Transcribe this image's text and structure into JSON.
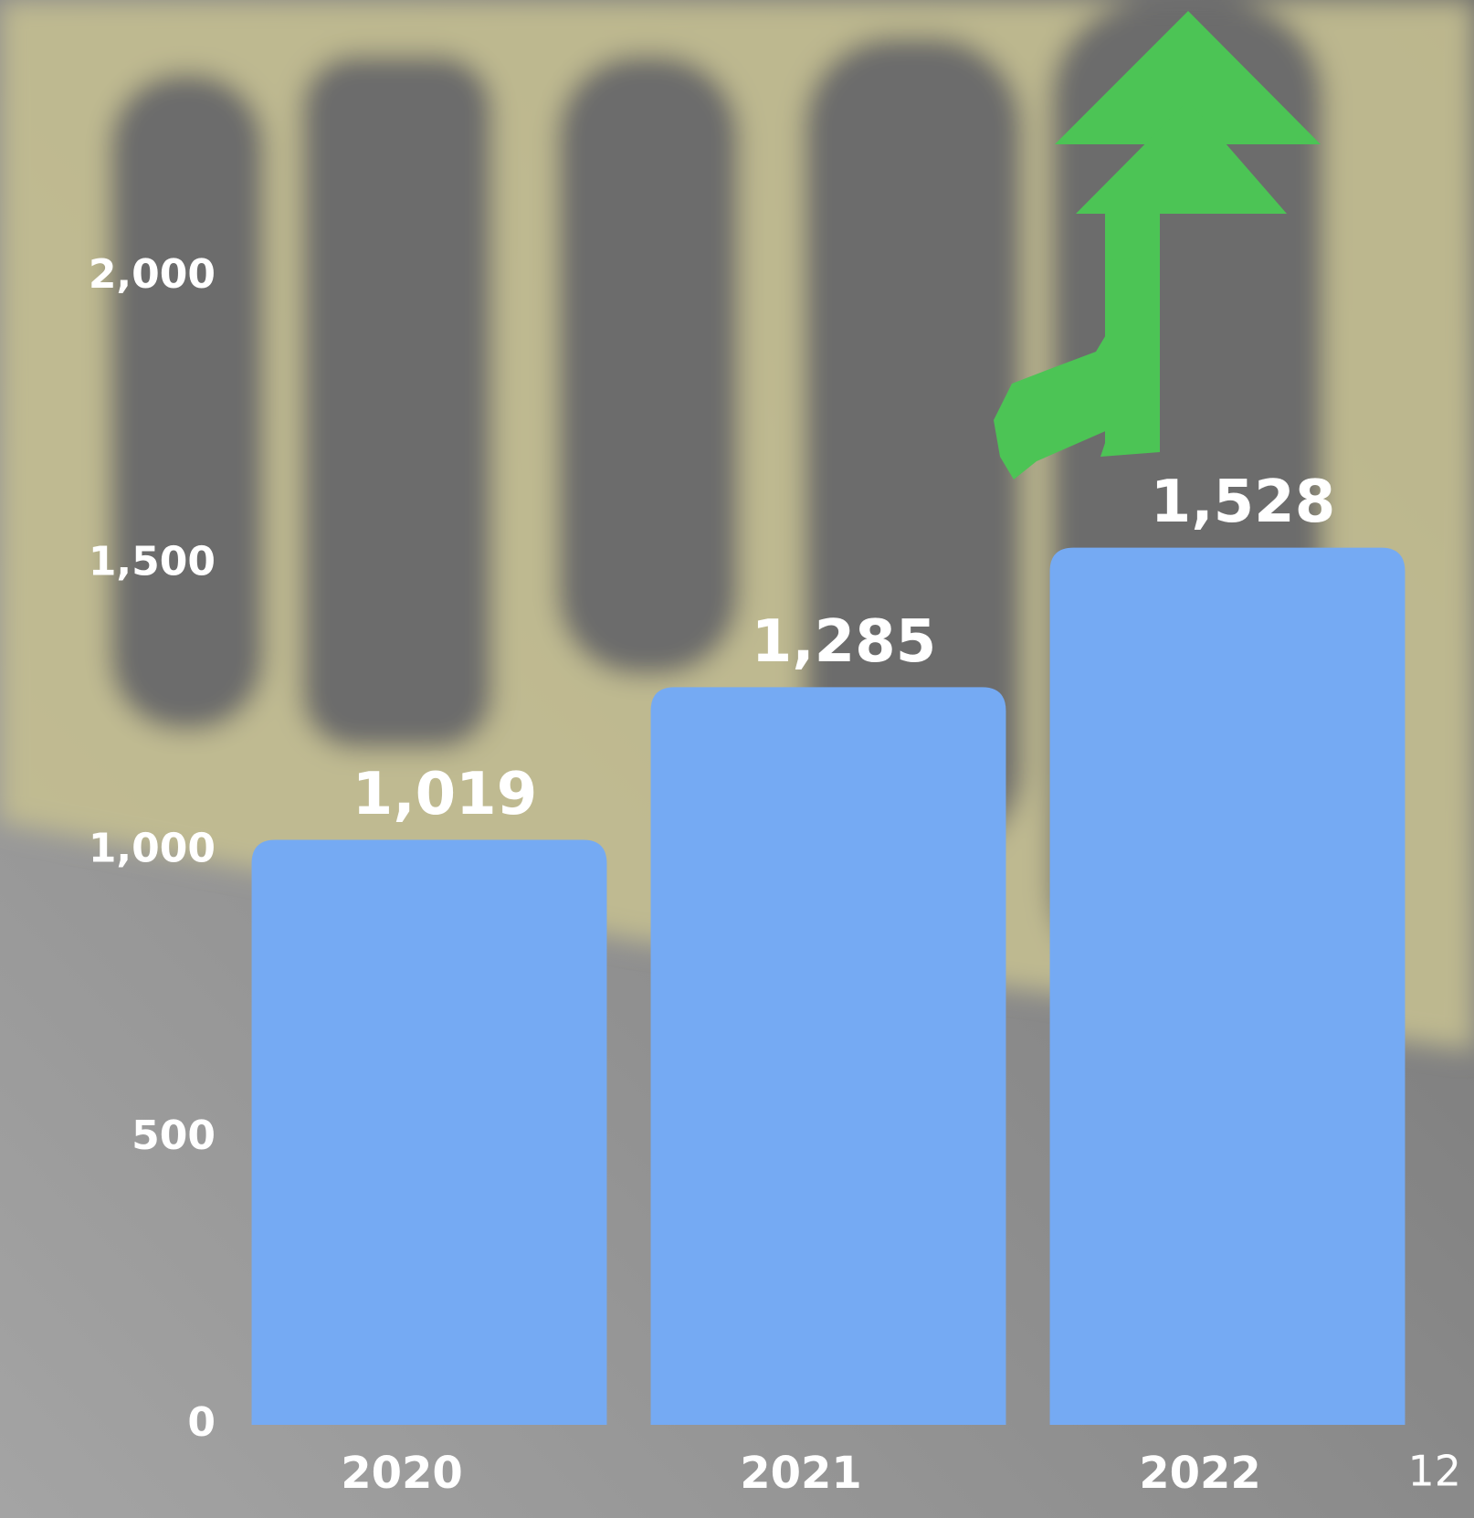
{
  "chart_data": {
    "type": "bar",
    "categories": [
      "2020",
      "2021",
      "2022"
    ],
    "values": [
      1019,
      1285,
      1528
    ],
    "value_labels": [
      "1,019",
      "1,285",
      "1,528"
    ],
    "color": "#75aaf3",
    "ylim": [
      0,
      2000
    ],
    "yticks": [
      0,
      500,
      {
        "value": 1000,
        "label": "1,000"
      },
      {
        "value": 1500,
        "label": "1,500"
      },
      {
        "value": 2000,
        "label": "2,000"
      }
    ],
    "grid": false
  },
  "page_number": "12"
}
